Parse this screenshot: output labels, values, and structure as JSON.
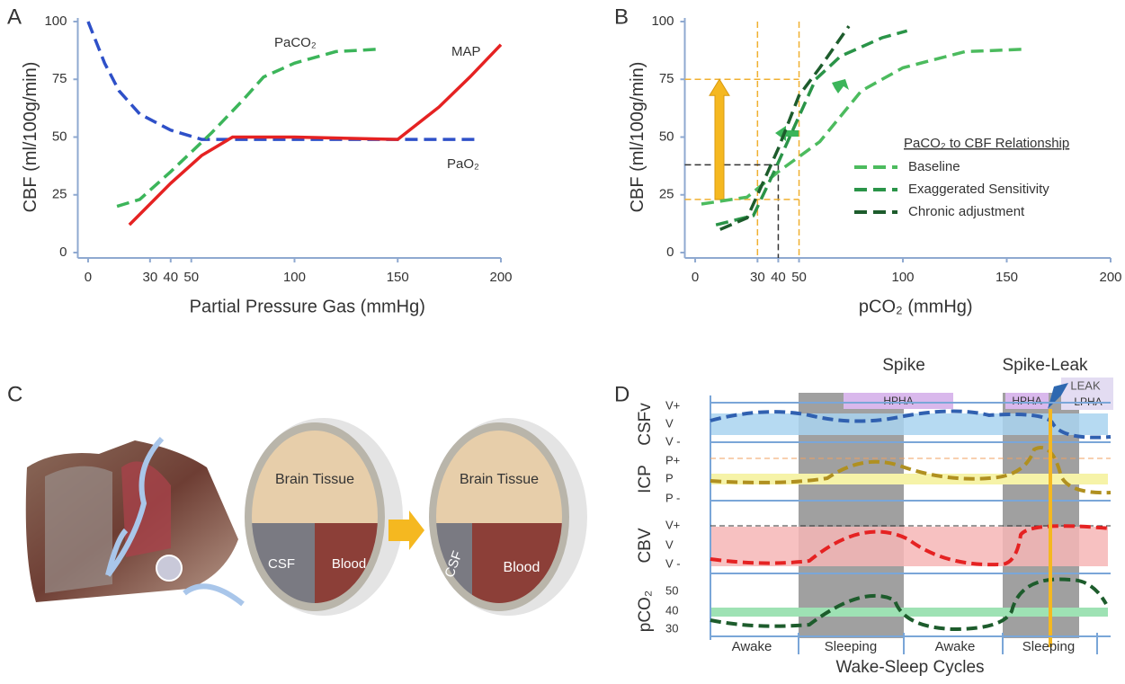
{
  "chart_data": [
    {
      "type": "line",
      "panel_label": "A",
      "x_label": "Partial Pressure Gas (mmHg)",
      "y_label": "CBF (ml/100g/min)",
      "xlim": [
        -5,
        200
      ],
      "ylim": [
        0,
        100
      ],
      "xticks": [
        0,
        30,
        40,
        50,
        100,
        150,
        200
      ],
      "yticks": [
        0,
        25,
        50,
        75,
        100
      ],
      "series": [
        {
          "name": "PaO₂",
          "color": "#2e50c8",
          "dash": true,
          "x": [
            0,
            8,
            15,
            25,
            40,
            55,
            75,
            100,
            150,
            190
          ],
          "values": [
            100,
            82,
            70,
            60,
            53,
            49,
            49,
            49,
            49,
            49
          ]
        },
        {
          "name": "PaCO₂",
          "color": "#3cb55a",
          "dash": true,
          "x": [
            14,
            25,
            40,
            60,
            75,
            85,
            100,
            120,
            140
          ],
          "values": [
            20,
            23,
            35,
            52,
            66,
            76,
            82,
            87,
            88
          ]
        },
        {
          "name": "MAP",
          "color": "#e52222",
          "dash": false,
          "x": [
            20,
            40,
            55,
            70,
            100,
            150,
            170,
            185,
            200
          ],
          "values": [
            12,
            30,
            42,
            50,
            50,
            49,
            63,
            76,
            90
          ]
        }
      ]
    },
    {
      "type": "line",
      "panel_label": "B",
      "x_label": "pCO₂ (mmHg)",
      "y_label": "CBF (ml/100g/min)",
      "xlim": [
        -5,
        200
      ],
      "ylim": [
        0,
        100
      ],
      "xticks": [
        0,
        30,
        40,
        50,
        100,
        150,
        200
      ],
      "yticks": [
        0,
        25,
        50,
        75,
        100
      ],
      "legend_title": "PaCO₂  to CBF Relationship",
      "series": [
        {
          "name": "Baseline",
          "color": "#4cbb5e",
          "dash": true,
          "x": [
            3,
            25,
            40,
            60,
            80,
            100,
            130,
            158
          ],
          "values": [
            21,
            24,
            35,
            48,
            70,
            80,
            87,
            88
          ]
        },
        {
          "name": "Exaggerated Sensitivity",
          "color": "#2a9448",
          "dash": true,
          "x": [
            10,
            28,
            38,
            48,
            58,
            70,
            90,
            102
          ],
          "values": [
            12,
            16,
            35,
            55,
            75,
            85,
            93,
            96
          ]
        },
        {
          "name": "Chronic adjustment",
          "color": "#1d5c2c",
          "dash": true,
          "x": [
            12,
            25,
            35,
            40,
            50,
            60,
            74
          ],
          "values": [
            10,
            15,
            35,
            45,
            68,
            80,
            98
          ]
        }
      ],
      "vertical_refs": [
        {
          "x": 30,
          "color": "#f0b030"
        },
        {
          "x": 50,
          "color": "#f0b030"
        },
        {
          "x": 40,
          "color": "#333333"
        }
      ],
      "horizontal_refs": [
        {
          "y": 75,
          "color": "#f0b030"
        },
        {
          "y": 23,
          "color": "#f0b030"
        },
        {
          "y": 38,
          "color": "#333333"
        }
      ]
    }
  ],
  "panel_c": {
    "label": "C",
    "before": {
      "tissue": "Brain Tissue",
      "csf": "CSF",
      "blood": "Blood"
    },
    "after": {
      "tissue": "Brain Tissue",
      "csf": "CSF",
      "blood": "Blood"
    }
  },
  "panel_d": {
    "label": "D",
    "events": [
      "Spike",
      "Spike-Leak"
    ],
    "leak": "LEAK",
    "phases": [
      "HPHA",
      "HPHA",
      "LPHA"
    ],
    "rows": [
      {
        "name": "CSFv",
        "ticks": [
          "V+",
          "V",
          "V -"
        ]
      },
      {
        "name": "ICP",
        "ticks": [
          "P+",
          "P",
          "P -"
        ]
      },
      {
        "name": "CBV",
        "ticks": [
          "V+",
          "V",
          "V -"
        ]
      },
      {
        "name": "pCO₂",
        "ticks": [
          "50",
          "40",
          "30"
        ]
      }
    ],
    "periods": [
      "Awake",
      "Sleeping",
      "Awake",
      "Sleeping"
    ],
    "x_label": "Wake-Sleep Cycles"
  }
}
